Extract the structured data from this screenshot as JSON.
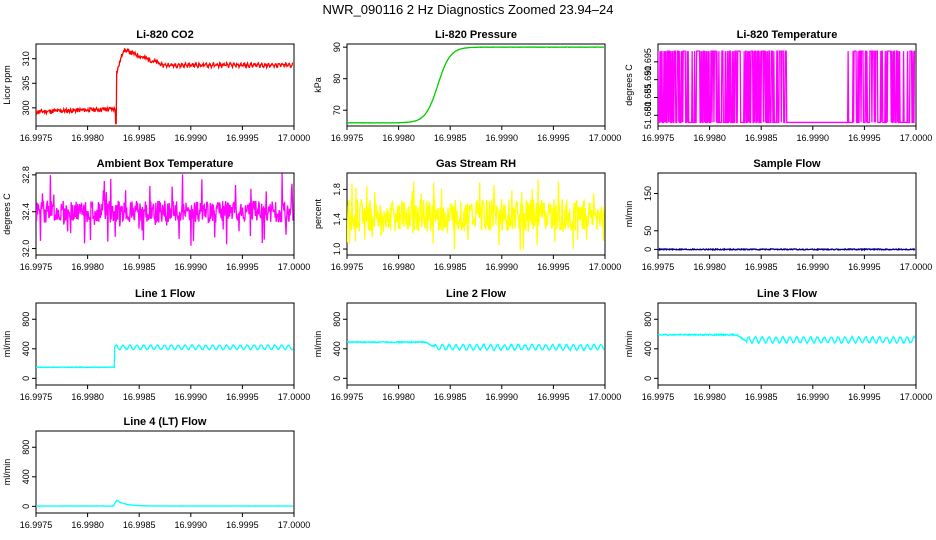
{
  "figure": {
    "title": "NWR_090116  2 Hz Diagnostics Zoomed 23.94–24"
  },
  "colors": {
    "red": "#ff0000",
    "green": "#00cd00",
    "magenta": "#ff00ff",
    "yellow": "#ffff00",
    "navy": "#00008b",
    "cyan": "#00ffff"
  },
  "chart_data": [
    {
      "type": "line",
      "title": "Li-820 CO2",
      "ylabel": "Licor ppm",
      "xlim": [
        16.9975,
        17.0
      ],
      "ylim": [
        296.3,
        313
      ],
      "yticks": [
        "300",
        "305",
        "310"
      ],
      "ytick_values": [
        300,
        305,
        310
      ],
      "xticks": [
        "16.9975",
        "16.9980",
        "16.9985",
        "16.9990",
        "16.9995",
        "17.0000"
      ],
      "color": "red",
      "series": [
        {
          "pattern": "co2",
          "noise": 0.45,
          "seed": 11
        }
      ]
    },
    {
      "type": "line",
      "title": "Li-820 Pressure",
      "ylabel": "kPa",
      "xlim": [
        16.9975,
        17.0
      ],
      "ylim": [
        65,
        91
      ],
      "yticks": [
        "70",
        "80",
        "90"
      ],
      "ytick_values": [
        70,
        80,
        90
      ],
      "xticks": [
        "16.9975",
        "16.9980",
        "16.9985",
        "16.9990",
        "16.9995",
        "17.0000"
      ],
      "color": "green",
      "series": [
        {
          "pattern": "pressure",
          "noise": 0.05,
          "seed": 12
        }
      ]
    },
    {
      "type": "line",
      "title": "Li-820 Temperature",
      "ylabel": "degrees C",
      "xlim": [
        16.9975,
        17.0
      ],
      "ylim": [
        51.677,
        51.7
      ],
      "yticks": [
        "51.680",
        "51.685",
        "51.690",
        "51.695"
      ],
      "ytick_values": [
        51.68,
        51.685,
        51.69,
        51.695
      ],
      "xticks": [
        "16.9975",
        "16.9980",
        "16.9985",
        "16.9990",
        "16.9995",
        "17.0000"
      ],
      "color": "magenta",
      "series": [
        {
          "pattern": "temp",
          "noise": 0,
          "seed": 13
        }
      ]
    },
    {
      "type": "line",
      "title": "Ambient Box Temperature",
      "ylabel": "degrees C",
      "xlim": [
        16.9975,
        17.0
      ],
      "ylim": [
        31.93,
        32.82
      ],
      "yticks": [
        "32.0",
        "32.4",
        "32.8"
      ],
      "ytick_values": [
        32.0,
        32.4,
        32.8
      ],
      "xticks": [
        "16.9975",
        "16.9980",
        "16.9985",
        "16.9990",
        "16.9995",
        "17.0000"
      ],
      "color": "magenta",
      "series": [
        {
          "pattern": "ambient",
          "noise": 0.12,
          "seed": 14
        }
      ]
    },
    {
      "type": "line",
      "title": "Gas Stream RH",
      "ylabel": "percent",
      "xlim": [
        16.9975,
        17.0
      ],
      "ylim": [
        0.92,
        2.02
      ],
      "yticks": [
        "1.0",
        "1.4",
        "1.8"
      ],
      "ytick_values": [
        1.0,
        1.4,
        1.8
      ],
      "xticks": [
        "16.9975",
        "16.9980",
        "16.9985",
        "16.9990",
        "16.9995",
        "17.0000"
      ],
      "color": "yellow",
      "series": [
        {
          "pattern": "rh",
          "noise": 0.22,
          "seed": 15
        }
      ]
    },
    {
      "type": "line",
      "title": "Sample Flow",
      "ylabel": "ml/min",
      "xlim": [
        16.9975,
        17.0
      ],
      "ylim": [
        -15,
        205
      ],
      "yticks": [
        "0",
        "50",
        "150"
      ],
      "ytick_values": [
        0,
        50,
        150
      ],
      "xticks": [
        "16.9975",
        "16.9980",
        "16.9985",
        "16.9990",
        "16.9995",
        "17.0000"
      ],
      "color": "navy",
      "series": [
        {
          "pattern": "sample",
          "noise": 1.5,
          "seed": 16
        }
      ]
    },
    {
      "type": "line",
      "title": "Line 1 Flow",
      "ylabel": "ml/min",
      "xlim": [
        16.9975,
        17.0
      ],
      "ylim": [
        -90,
        1020
      ],
      "yticks": [
        "0",
        "400",
        "800"
      ],
      "ytick_values": [
        0,
        400,
        800
      ],
      "xticks": [
        "16.9975",
        "16.9980",
        "16.9985",
        "16.9990",
        "16.9995",
        "17.0000"
      ],
      "color": "cyan",
      "series": [
        {
          "pattern": "line1",
          "noise": 4,
          "seed": 17
        }
      ]
    },
    {
      "type": "line",
      "title": "Line 2 Flow",
      "ylabel": "ml/min",
      "xlim": [
        16.9975,
        17.0
      ],
      "ylim": [
        -90,
        1020
      ],
      "yticks": [
        "0",
        "400",
        "800"
      ],
      "ytick_values": [
        0,
        400,
        800
      ],
      "xticks": [
        "16.9975",
        "16.9980",
        "16.9985",
        "16.9990",
        "16.9995",
        "17.0000"
      ],
      "color": "cyan",
      "series": [
        {
          "pattern": "line2",
          "noise": 8,
          "seed": 18
        }
      ]
    },
    {
      "type": "line",
      "title": "Line 3 Flow",
      "ylabel": "ml/min",
      "xlim": [
        16.9975,
        17.0
      ],
      "ylim": [
        -90,
        1020
      ],
      "yticks": [
        "0",
        "400",
        "800"
      ],
      "ytick_values": [
        0,
        400,
        800
      ],
      "xticks": [
        "16.9975",
        "16.9980",
        "16.9985",
        "16.9990",
        "16.9995",
        "17.0000"
      ],
      "color": "cyan",
      "series": [
        {
          "pattern": "line3",
          "noise": 8,
          "seed": 19
        }
      ]
    },
    {
      "type": "line",
      "title": "Line 4 (LT) Flow",
      "ylabel": "ml/min",
      "xlim": [
        16.9975,
        17.0
      ],
      "ylim": [
        -90,
        1020
      ],
      "yticks": [
        "0",
        "400",
        "800"
      ],
      "ytick_values": [
        0,
        400,
        800
      ],
      "xticks": [
        "16.9975",
        "16.9980",
        "16.9985",
        "16.9990",
        "16.9995",
        "17.0000"
      ],
      "color": "cyan",
      "series": [
        {
          "pattern": "line4",
          "noise": 2,
          "seed": 20
        }
      ]
    }
  ]
}
